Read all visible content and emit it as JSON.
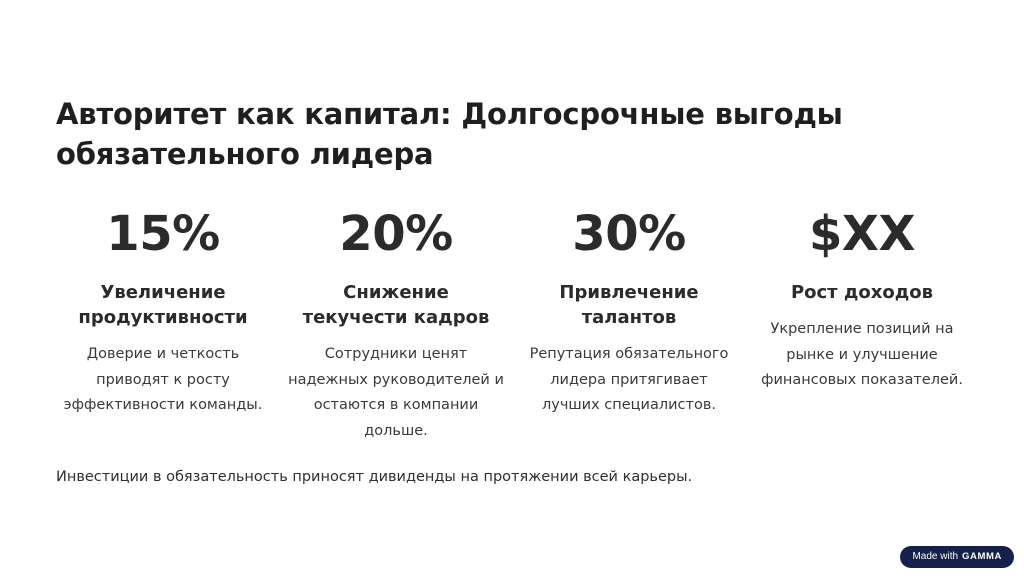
{
  "slide": {
    "title": "Авторитет как капитал: Долгосрочные выгоды обязательного лидера",
    "footer": "Инвестиции в обязательность приносят дивиденды на протяжении всей карьеры."
  },
  "stats": [
    {
      "value": "15%",
      "heading": "Увеличение продуктивности",
      "text": "Доверие и четкость приводят к росту эффективности команды."
    },
    {
      "value": "20%",
      "heading": "Снижение текучести кадров",
      "text": "Сотрудники ценят надежных руководителей и остаются в компании дольше."
    },
    {
      "value": "30%",
      "heading": "Привлечение талантов",
      "text": "Репутация обязательного лидера притягивает лучших специалистов."
    },
    {
      "value": "$XX",
      "heading": "Рост доходов",
      "text": "Укрепление позиций на рынке и улучшение финансовых показателей."
    }
  ],
  "badge": {
    "prefix": "Made with",
    "brand": "GAMMA"
  },
  "colors": {
    "text": "#2b2b2b",
    "badge_background": "#15214a",
    "background": "#ffffff"
  }
}
